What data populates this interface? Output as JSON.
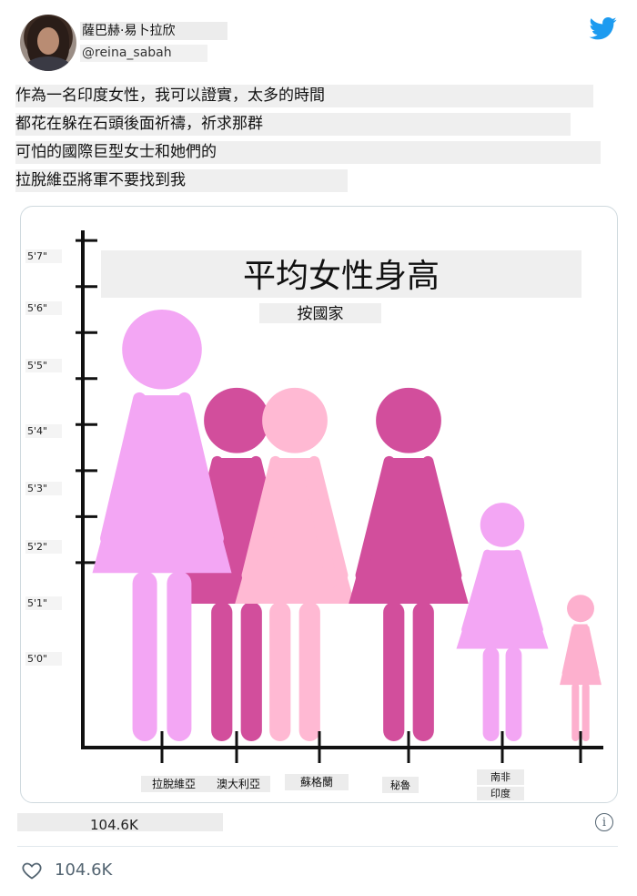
{
  "tweet": {
    "display_name": "薩巴赫·易卜拉欣",
    "handle": "@reina_sabah",
    "text_lines": [
      "作為一名印度女性，我可以證實，太多的時間",
      "都花在躲在石頭後面祈禱，祈求那群",
      "可怕的國際巨型女士和她們的",
      "拉脫維亞將軍不要找到我"
    ],
    "retweet_count": "104.6K",
    "like_count": "104.6K",
    "icons": [
      "twitter-bird-icon",
      "info-icon",
      "heart-icon"
    ],
    "brand_color": "#1d9bf0"
  },
  "chart_data": {
    "type": "bar",
    "title": "平均女性身高",
    "subtitle": "按國家",
    "categories": [
      "拉脫維亞",
      "澳大利亞",
      "蘇格蘭",
      "秘魯",
      "南非",
      "印度"
    ],
    "category_label_note": "",
    "y_tick_labels": [
      "5'0\"",
      "5'1\"",
      "5'2\"",
      "5'3\"",
      "5'4\"",
      "5'5\"",
      "5'6\"",
      "5'7\""
    ],
    "values": [
      65.5,
      63.8,
      63.8,
      63.8,
      61.3,
      59.3
    ],
    "ylim": [
      56.0,
      67.3
    ],
    "colors": [
      "#f3a6f4",
      "#d24e9c",
      "#ffb9d3",
      "#d24e9c",
      "#f3a6f4",
      "#fdb0ce"
    ]
  }
}
